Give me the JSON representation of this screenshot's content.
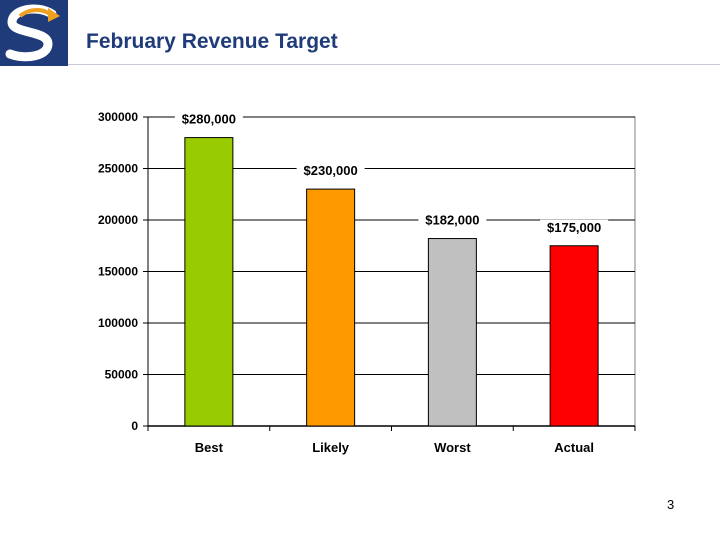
{
  "header": {
    "title": "February Revenue Target"
  },
  "footer": {
    "page_number": "3"
  },
  "logo": {
    "icon": "s-arrow-logo-icon",
    "colors": [
      "#1f3b7a",
      "#f0a020"
    ]
  },
  "chart_data": {
    "type": "bar",
    "title": "",
    "xlabel": "",
    "ylabel": "",
    "categories": [
      "Best",
      "Likely",
      "Worst",
      "Actual"
    ],
    "values": [
      280000,
      230000,
      182000,
      175000
    ],
    "data_labels": [
      "$280,000",
      "$230,000",
      "$182,000",
      "$175,000"
    ],
    "colors": [
      "#99cc00",
      "#ff9900",
      "#c0c0c0",
      "#ff0000"
    ],
    "ylim": [
      0,
      300000
    ],
    "yticks": [
      0,
      50000,
      100000,
      150000,
      200000,
      250000,
      300000
    ],
    "ytick_labels": [
      "0",
      "50000",
      "100000",
      "150000",
      "200000",
      "250000",
      "300000"
    ],
    "grid": true,
    "legend": "none"
  }
}
